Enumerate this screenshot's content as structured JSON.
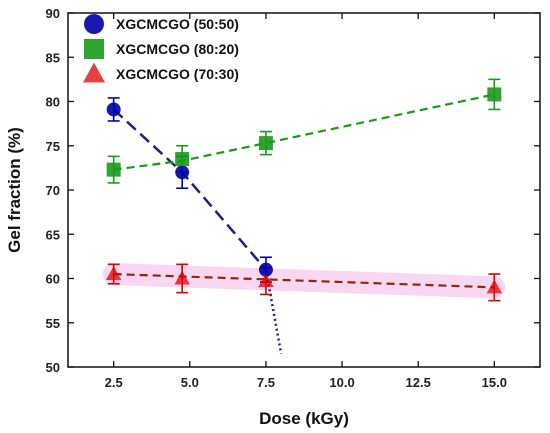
{
  "chart_data": {
    "type": "scatter",
    "xlabel": "Dose (kGy)",
    "ylabel": "Gel fraction (%)",
    "xlim": [
      1.0,
      16.5
    ],
    "ylim": [
      50,
      90
    ],
    "xticks": [
      2.5,
      5.0,
      7.5,
      10.0,
      12.5,
      15.0
    ],
    "xtick_labels": [
      "2.5",
      "5.0",
      "7.5",
      "10.0",
      "12.5",
      "15.0"
    ],
    "yticks": [
      50,
      55,
      60,
      65,
      70,
      75,
      80,
      85,
      90
    ],
    "ytick_labels": [
      "50",
      "55",
      "60",
      "65",
      "70",
      "75",
      "80",
      "85",
      "90"
    ],
    "grid": false,
    "legend_position": "top-left",
    "series": [
      {
        "name": "XGCMCGO (50:50)",
        "marker": "circle",
        "color": "#0000a8",
        "line_color": "#1a237e",
        "x": [
          2.5,
          4.75,
          7.5
        ],
        "y": [
          79.1,
          72.0,
          61.0
        ],
        "err": [
          1.3,
          1.8,
          1.4
        ],
        "fit_dash": [
          [
            2.5,
            79.1
          ],
          [
            4.75,
            72.0
          ],
          [
            7.5,
            61.0
          ]
        ],
        "fit_dot": [
          [
            7.5,
            61.0
          ],
          [
            8.0,
            51.5
          ]
        ]
      },
      {
        "name": "XGCMCGO (80:20)",
        "marker": "square",
        "color": "#1a9a1a",
        "line_color": "#1a9a1a",
        "x": [
          2.5,
          4.75,
          7.5,
          15.0
        ],
        "y": [
          72.3,
          73.5,
          75.3,
          80.8
        ],
        "err": [
          1.5,
          1.5,
          1.3,
          1.7
        ],
        "fit_dash": [
          [
            2.5,
            72.3
          ],
          [
            4.75,
            73.3
          ],
          [
            7.5,
            75.3
          ],
          [
            15.0,
            80.8
          ]
        ]
      },
      {
        "name": "XGCMCGO (70:30)",
        "marker": "triangle",
        "color": "#e00000",
        "line_color": "#8b2b0e",
        "x": [
          2.5,
          4.75,
          7.5,
          15.0
        ],
        "y": [
          60.5,
          60.0,
          59.7,
          59.0
        ],
        "err": [
          1.1,
          1.6,
          1.5,
          1.5
        ],
        "fit_dash": [
          [
            2.5,
            60.5
          ],
          [
            15.0,
            59.0
          ]
        ]
      }
    ]
  }
}
